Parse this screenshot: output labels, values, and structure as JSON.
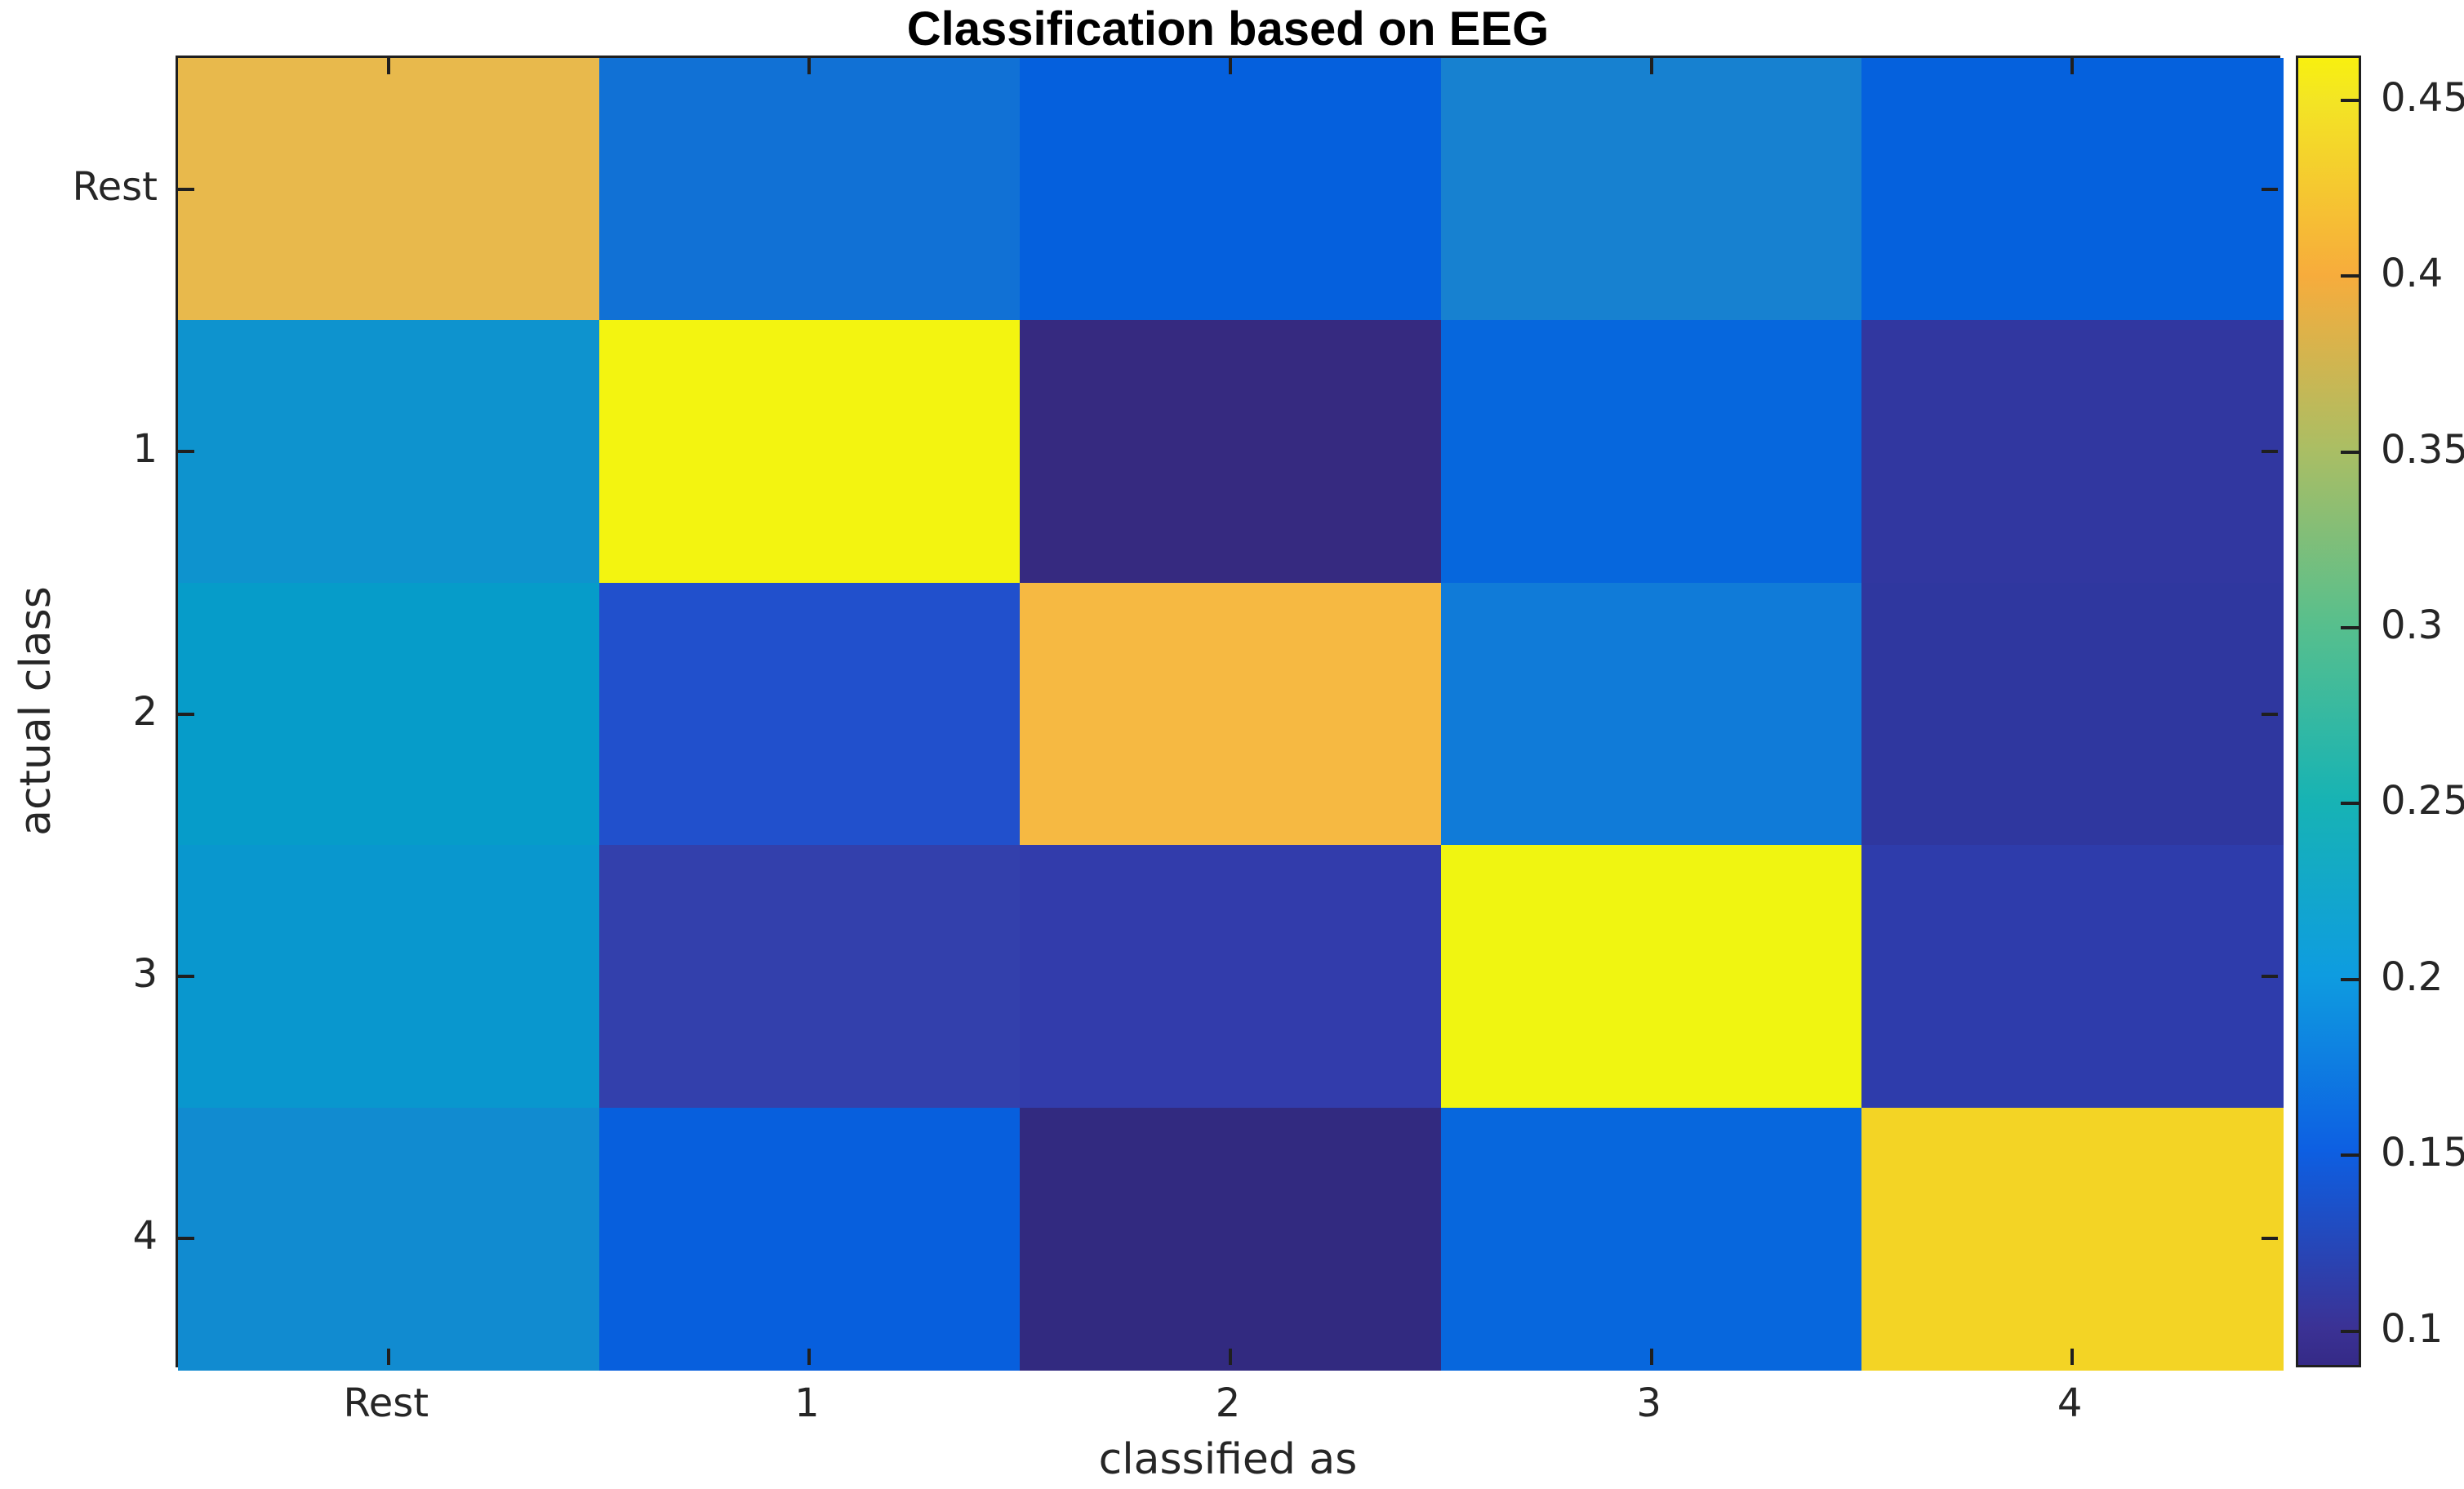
{
  "title": "Classification based on EEG",
  "chart_data": {
    "type": "heatmap",
    "title": "Classification based on EEG",
    "xlabel": "classified as",
    "ylabel": "actual class",
    "x_categories": [
      "Rest",
      "1",
      "2",
      "3",
      "4"
    ],
    "y_categories": [
      "Rest",
      "1",
      "2",
      "3",
      "4"
    ],
    "values_note": "row-normalized classification rates estimated from cell colors via the colorbar",
    "values": [
      [
        0.41,
        0.165,
        0.15,
        0.18,
        0.15
      ],
      [
        0.195,
        0.46,
        0.092,
        0.155,
        0.108
      ],
      [
        0.21,
        0.13,
        0.405,
        0.175,
        0.107
      ],
      [
        0.2,
        0.118,
        0.115,
        0.455,
        0.115
      ],
      [
        0.19,
        0.15,
        0.093,
        0.155,
        0.435
      ]
    ],
    "cell_colors": [
      [
        "#e8b94c",
        "#1171d5",
        "#0560dd",
        "#1781d0",
        "#0561dd"
      ],
      [
        "#0e93ce",
        "#f3f410",
        "#362a80",
        "#0667dd",
        "#3137a0"
      ],
      [
        "#069cc9",
        "#2150cc",
        "#f6b942",
        "#107bd8",
        "#2f379f"
      ],
      [
        "#0997ce",
        "#3340ac",
        "#323cab",
        "#f0f511",
        "#2e3cab"
      ],
      [
        "#118bd0",
        "#075fdd",
        "#322a80",
        "#0767dd",
        "#f3d425"
      ]
    ],
    "colorbar": {
      "tick_labels": [
        "0.45",
        "0.4",
        "0.35",
        "0.3",
        "0.25",
        "0.2",
        "0.15",
        "0.1"
      ],
      "tick_values": [
        0.45,
        0.4,
        0.35,
        0.3,
        0.25,
        0.2,
        0.15,
        0.1
      ],
      "range_min": 0.089,
      "range_max": 0.462,
      "colormap": "parula",
      "gradient_stops": [
        {
          "pct": 0.0,
          "color": "#352a87"
        },
        {
          "pct": 2.9,
          "color": "#3b3295"
        },
        {
          "pct": 16.4,
          "color": "#0d5fe2"
        },
        {
          "pct": 29.8,
          "color": "#0e9ce0"
        },
        {
          "pct": 43.2,
          "color": "#17b3b4"
        },
        {
          "pct": 56.6,
          "color": "#57bf8d"
        },
        {
          "pct": 70.0,
          "color": "#aabe64"
        },
        {
          "pct": 83.4,
          "color": "#f7ac3c"
        },
        {
          "pct": 96.8,
          "color": "#f3e524"
        },
        {
          "pct": 100.0,
          "color": "#f8f00f"
        }
      ]
    },
    "legend_position": "right-colorbar",
    "grid": false
  },
  "style": {
    "axis_color": "#1f1f1f",
    "label_color": "#262626",
    "title_color": "#000000",
    "background": "#ffffff"
  }
}
